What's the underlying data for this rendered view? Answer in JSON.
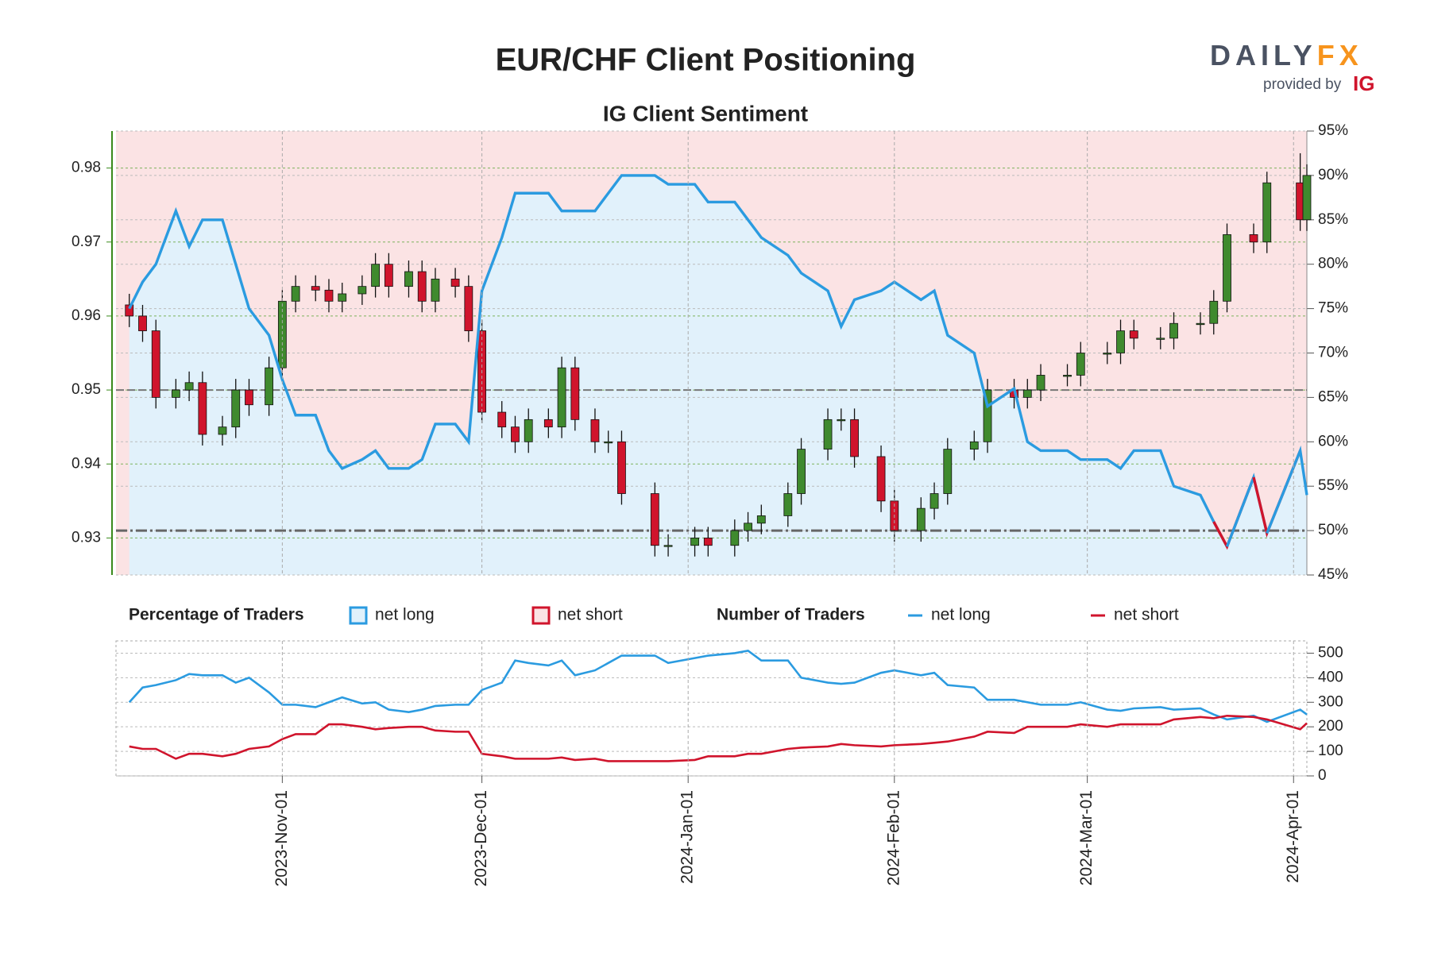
{
  "branding": {
    "name_part1": "DAILY",
    "name_part2": "FX",
    "provided_by": "provided by",
    "ig": "IG"
  },
  "chart_data": [
    {
      "type": "candlestick",
      "title": "EUR/CHF Client Positioning",
      "subtitle": "IG Client Sentiment",
      "x": [
        "2023-10-09",
        "2023-10-11",
        "2023-10-13",
        "2023-10-16",
        "2023-10-18",
        "2023-10-20",
        "2023-10-23",
        "2023-10-25",
        "2023-10-27",
        "2023-10-30",
        "2023-11-01",
        "2023-11-03",
        "2023-11-06",
        "2023-11-08",
        "2023-11-10",
        "2023-11-13",
        "2023-11-15",
        "2023-11-17",
        "2023-11-20",
        "2023-11-22",
        "2023-11-24",
        "2023-11-27",
        "2023-11-29",
        "2023-12-01",
        "2023-12-04",
        "2023-12-06",
        "2023-12-08",
        "2023-12-11",
        "2023-12-13",
        "2023-12-15",
        "2023-12-18",
        "2023-12-20",
        "2023-12-22",
        "2023-12-27",
        "2023-12-29",
        "2024-01-02",
        "2024-01-04",
        "2024-01-08",
        "2024-01-10",
        "2024-01-12",
        "2024-01-16",
        "2024-01-18",
        "2024-01-22",
        "2024-01-24",
        "2024-01-26",
        "2024-01-30",
        "2024-02-01",
        "2024-02-05",
        "2024-02-07",
        "2024-02-09",
        "2024-02-13",
        "2024-02-15",
        "2024-02-19",
        "2024-02-21",
        "2024-02-23",
        "2024-02-27",
        "2024-02-29",
        "2024-03-04",
        "2024-03-06",
        "2024-03-08",
        "2024-03-12",
        "2024-03-14",
        "2024-03-18",
        "2024-03-20",
        "2024-03-22",
        "2024-03-26",
        "2024-03-28",
        "2024-04-02",
        "2024-04-03"
      ],
      "open": [
        0.9615,
        0.96,
        0.958,
        0.949,
        0.95,
        0.951,
        0.944,
        0.945,
        0.95,
        0.948,
        0.953,
        0.962,
        0.964,
        0.9635,
        0.962,
        0.963,
        0.964,
        0.967,
        0.964,
        0.966,
        0.962,
        0.965,
        0.964,
        0.958,
        0.947,
        0.945,
        0.943,
        0.946,
        0.945,
        0.953,
        0.946,
        0.943,
        0.943,
        0.936,
        0.929,
        0.929,
        0.93,
        0.929,
        0.931,
        0.932,
        0.933,
        0.936,
        0.942,
        0.946,
        0.946,
        0.941,
        0.935,
        0.931,
        0.934,
        0.936,
        0.942,
        0.943,
        0.95,
        0.949,
        0.95,
        0.952,
        0.952,
        0.955,
        0.955,
        0.958,
        0.957,
        0.957,
        0.959,
        0.959,
        0.962,
        0.971,
        0.97,
        0.978,
        0.973
      ],
      "high": [
        0.963,
        0.9615,
        0.9595,
        0.9515,
        0.9525,
        0.9525,
        0.9465,
        0.9515,
        0.9515,
        0.9545,
        0.9635,
        0.9655,
        0.9655,
        0.965,
        0.9645,
        0.9655,
        0.9685,
        0.9685,
        0.9675,
        0.9675,
        0.9665,
        0.9665,
        0.9655,
        0.9595,
        0.9485,
        0.9465,
        0.9475,
        0.9475,
        0.9545,
        0.9545,
        0.9475,
        0.9445,
        0.9445,
        0.9375,
        0.9305,
        0.9315,
        0.9315,
        0.9325,
        0.9335,
        0.9345,
        0.9375,
        0.9435,
        0.9475,
        0.9475,
        0.9475,
        0.9425,
        0.9365,
        0.9355,
        0.9375,
        0.9435,
        0.9445,
        0.9515,
        0.9515,
        0.9515,
        0.9535,
        0.9535,
        0.9565,
        0.9565,
        0.9595,
        0.9595,
        0.9585,
        0.9605,
        0.9605,
        0.9635,
        0.9725,
        0.9725,
        0.9795,
        0.982,
        0.9805
      ],
      "low": [
        0.9585,
        0.9565,
        0.9475,
        0.9475,
        0.9485,
        0.9425,
        0.9425,
        0.9435,
        0.9465,
        0.9465,
        0.9515,
        0.9605,
        0.962,
        0.9605,
        0.9605,
        0.9615,
        0.9625,
        0.9625,
        0.9625,
        0.9605,
        0.9605,
        0.9625,
        0.9565,
        0.9455,
        0.9435,
        0.9415,
        0.9415,
        0.9435,
        0.9435,
        0.9445,
        0.9415,
        0.9415,
        0.9345,
        0.9275,
        0.9275,
        0.9275,
        0.9275,
        0.9275,
        0.9295,
        0.9305,
        0.9315,
        0.9345,
        0.9405,
        0.9445,
        0.9395,
        0.9335,
        0.9295,
        0.9295,
        0.9325,
        0.9345,
        0.9405,
        0.9415,
        0.9475,
        0.9475,
        0.9485,
        0.9505,
        0.9505,
        0.9535,
        0.9535,
        0.9555,
        0.9555,
        0.9555,
        0.9575,
        0.9575,
        0.9605,
        0.9685,
        0.9685,
        0.9715,
        0.9715
      ],
      "close": [
        0.96,
        0.958,
        0.949,
        0.95,
        0.951,
        0.944,
        0.945,
        0.95,
        0.948,
        0.953,
        0.962,
        0.964,
        0.9635,
        0.962,
        0.963,
        0.964,
        0.967,
        0.964,
        0.966,
        0.962,
        0.965,
        0.964,
        0.958,
        0.947,
        0.945,
        0.943,
        0.946,
        0.945,
        0.953,
        0.946,
        0.943,
        0.943,
        0.936,
        0.929,
        0.929,
        0.93,
        0.929,
        0.931,
        0.932,
        0.933,
        0.936,
        0.942,
        0.946,
        0.946,
        0.941,
        0.935,
        0.931,
        0.934,
        0.936,
        0.942,
        0.943,
        0.95,
        0.949,
        0.95,
        0.952,
        0.952,
        0.955,
        0.955,
        0.958,
        0.957,
        0.957,
        0.959,
        0.959,
        0.962,
        0.971,
        0.97,
        0.978,
        0.973,
        0.979
      ],
      "up_color": "#3f8a2e",
      "down_color": "#d0142c",
      "sentiment": {
        "axis": "y2",
        "values": [
          75,
          78,
          80,
          86,
          82,
          85,
          85,
          80,
          75,
          72,
          67,
          63,
          63,
          59,
          57,
          58,
          59,
          57,
          57,
          58,
          62,
          62,
          60,
          77,
          83,
          88,
          88,
          88,
          86,
          86,
          86,
          88,
          90,
          90,
          89,
          89,
          87,
          87,
          85,
          83,
          81,
          79,
          77,
          73,
          76,
          77,
          78,
          76,
          77,
          72,
          70,
          64,
          66,
          60,
          59,
          59,
          58,
          58,
          57,
          59,
          59,
          55,
          54,
          51,
          48.2,
          56,
          49.7,
          59,
          54
        ]
      },
      "legend_title": "Percentage of Traders",
      "legend": [
        {
          "name": "net long",
          "color": "#2b9be0",
          "fill": "#e1f1fb"
        },
        {
          "name": "net short",
          "color": "#d0142c",
          "fill": "#fbe3e4"
        }
      ],
      "xlim": [
        "2023-10-07",
        "2024-04-03"
      ],
      "xticks": [
        {
          "value": "2023-11-01",
          "label": "2023-Nov-01"
        },
        {
          "value": "2023-12-01",
          "label": "2023-Dec-01"
        },
        {
          "value": "2024-01-01",
          "label": "2024-Jan-01"
        },
        {
          "value": "2024-02-01",
          "label": "2024-Feb-01"
        },
        {
          "value": "2024-03-01",
          "label": "2024-Mar-01"
        },
        {
          "value": "2024-04-01",
          "label": "2024-Apr-01"
        }
      ],
      "ylim": [
        0.925,
        0.985
      ],
      "yticks": [
        0.93,
        0.94,
        0.95,
        0.96,
        0.97,
        0.98
      ],
      "y_axis_color": "#3a8a1c",
      "y_reference": 0.95,
      "y2lim": [
        45,
        95
      ],
      "y2ticks": [
        {
          "value": 45,
          "label": "45%"
        },
        {
          "value": 50,
          "label": "50%"
        },
        {
          "value": 55,
          "label": "55%"
        },
        {
          "value": 60,
          "label": "60%"
        },
        {
          "value": 65,
          "label": "65%"
        },
        {
          "value": 70,
          "label": "70%"
        },
        {
          "value": 75,
          "label": "75%"
        },
        {
          "value": 80,
          "label": "80%"
        },
        {
          "value": 85,
          "label": "85%"
        },
        {
          "value": 90,
          "label": "90%"
        },
        {
          "value": 95,
          "label": "95%"
        }
      ],
      "y2_reference": 50,
      "grid": true
    },
    {
      "type": "line",
      "legend_title": "Number of Traders",
      "x": [
        "2023-10-09",
        "2023-10-11",
        "2023-10-13",
        "2023-10-16",
        "2023-10-18",
        "2023-10-20",
        "2023-10-23",
        "2023-10-25",
        "2023-10-27",
        "2023-10-30",
        "2023-11-01",
        "2023-11-03",
        "2023-11-06",
        "2023-11-08",
        "2023-11-10",
        "2023-11-13",
        "2023-11-15",
        "2023-11-17",
        "2023-11-20",
        "2023-11-22",
        "2023-11-24",
        "2023-11-27",
        "2023-11-29",
        "2023-12-01",
        "2023-12-04",
        "2023-12-06",
        "2023-12-08",
        "2023-12-11",
        "2023-12-13",
        "2023-12-15",
        "2023-12-18",
        "2023-12-20",
        "2023-12-22",
        "2023-12-27",
        "2023-12-29",
        "2024-01-02",
        "2024-01-04",
        "2024-01-08",
        "2024-01-10",
        "2024-01-12",
        "2024-01-16",
        "2024-01-18",
        "2024-01-22",
        "2024-01-24",
        "2024-01-26",
        "2024-01-30",
        "2024-02-01",
        "2024-02-05",
        "2024-02-07",
        "2024-02-09",
        "2024-02-13",
        "2024-02-15",
        "2024-02-19",
        "2024-02-21",
        "2024-02-23",
        "2024-02-27",
        "2024-02-29",
        "2024-03-04",
        "2024-03-06",
        "2024-03-08",
        "2024-03-12",
        "2024-03-14",
        "2024-03-18",
        "2024-03-20",
        "2024-03-22",
        "2024-03-26",
        "2024-03-28",
        "2024-04-02",
        "2024-04-03"
      ],
      "series": [
        {
          "name": "net long",
          "color": "#2b9be0",
          "values": [
            300,
            360,
            370,
            390,
            415,
            410,
            410,
            380,
            400,
            340,
            290,
            290,
            280,
            300,
            320,
            295,
            300,
            270,
            260,
            270,
            285,
            290,
            290,
            350,
            380,
            470,
            460,
            450,
            470,
            410,
            430,
            460,
            490,
            490,
            460,
            480,
            490,
            500,
            510,
            470,
            470,
            400,
            380,
            375,
            380,
            420,
            430,
            410,
            420,
            370,
            360,
            310,
            310,
            300,
            290,
            290,
            300,
            270,
            265,
            275,
            280,
            270,
            275,
            250,
            230,
            245,
            220,
            270,
            250
          ]
        },
        {
          "name": "net short",
          "color": "#d0142c",
          "values": [
            120,
            110,
            110,
            70,
            90,
            90,
            80,
            90,
            110,
            120,
            150,
            170,
            170,
            210,
            210,
            200,
            190,
            195,
            200,
            200,
            185,
            180,
            180,
            90,
            80,
            70,
            70,
            70,
            75,
            65,
            70,
            60,
            60,
            60,
            60,
            65,
            80,
            80,
            90,
            90,
            110,
            115,
            120,
            130,
            125,
            120,
            125,
            130,
            135,
            140,
            160,
            180,
            175,
            200,
            200,
            200,
            210,
            200,
            210,
            210,
            210,
            230,
            240,
            235,
            245,
            240,
            230,
            190,
            215
          ]
        }
      ],
      "xlim": [
        "2023-10-07",
        "2024-04-03"
      ],
      "ylim": [
        0,
        550
      ],
      "yticks": [
        0,
        100,
        200,
        300,
        400,
        500
      ],
      "grid": true
    }
  ]
}
